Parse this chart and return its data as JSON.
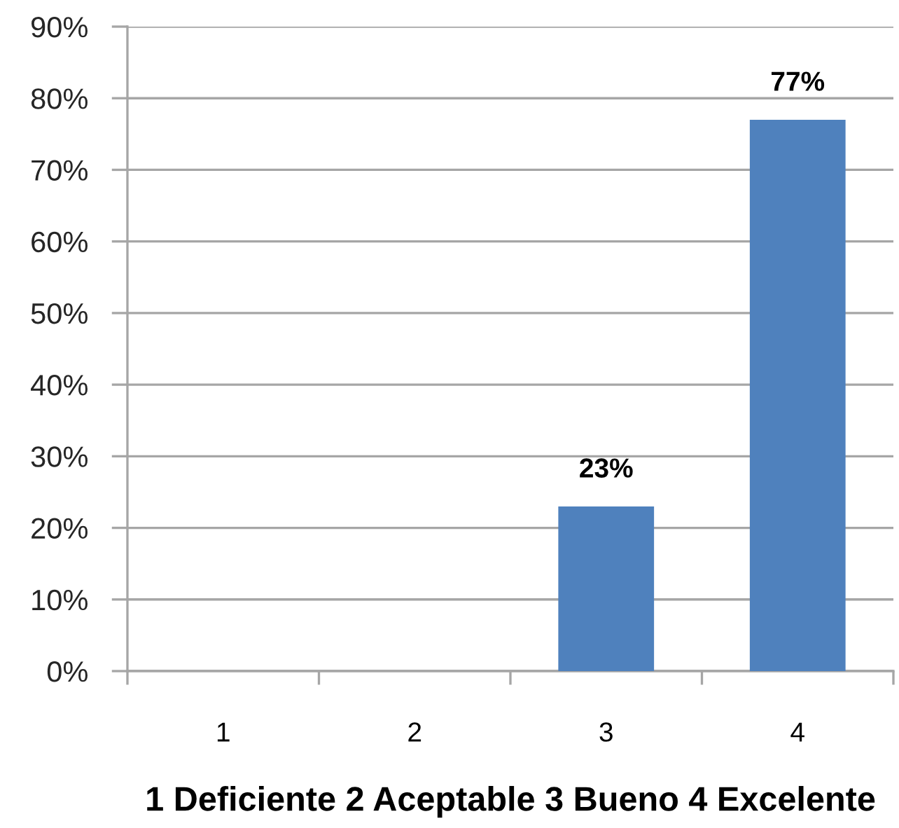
{
  "chart_data": {
    "type": "bar",
    "categories": [
      "1",
      "2",
      "3",
      "4"
    ],
    "values": [
      0,
      0,
      23,
      77
    ],
    "value_labels": [
      null,
      null,
      "23%",
      "77%"
    ],
    "color": "#4f81bd",
    "xlabel": "1 Deficiente 2 Aceptable 3 Bueno 4 Excelente",
    "ylim": [
      0,
      90
    ],
    "yticks": [
      {
        "value": 0,
        "label": "0%"
      },
      {
        "value": 10,
        "label": "10%"
      },
      {
        "value": 20,
        "label": "20%"
      },
      {
        "value": 30,
        "label": "30%"
      },
      {
        "value": 40,
        "label": "40%"
      },
      {
        "value": 50,
        "label": "50%"
      },
      {
        "value": 60,
        "label": "60%"
      },
      {
        "value": 70,
        "label": "70%"
      },
      {
        "value": 80,
        "label": "80%"
      },
      {
        "value": 90,
        "label": "90%"
      }
    ],
    "grid": "y",
    "legend": false
  }
}
